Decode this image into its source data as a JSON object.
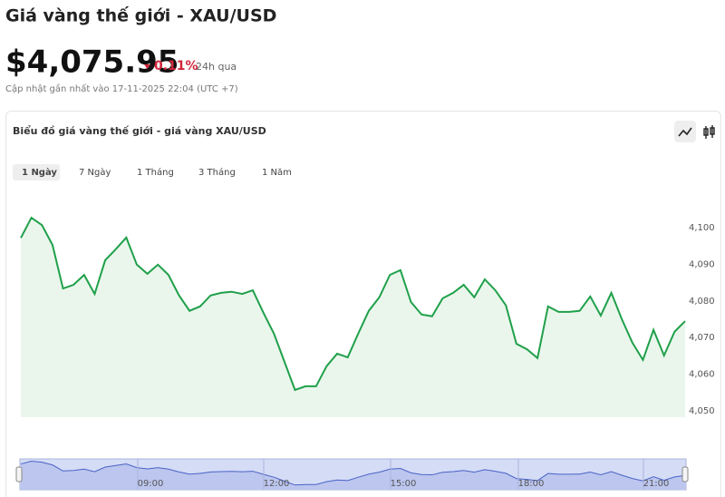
{
  "header": {
    "title": "Giá vàng thế giới - XAU/USD",
    "price": "$4,075.95",
    "change": "0.11%",
    "period": "24h qua",
    "updated": "Cập nhật gần nhất vào 17-11-2025 22:04 (UTC +7)"
  },
  "tabs": [
    "1 Ngày",
    "7 Ngày",
    "1 Tháng",
    "3 Tháng",
    "1 Năm"
  ],
  "navigator_labels": [
    "09:00",
    "12:00",
    "15:00",
    "18:00",
    "21:00"
  ],
  "chart_data": {
    "type": "area",
    "title": "Biểu đồ giá vàng thế giới - giá vàng XAU/USD",
    "color": "#1fa04a",
    "fill": "#eaf6ec",
    "values": [
      4097.2,
      4102.7,
      4100.7,
      4095.3,
      4083.4,
      4084.4,
      4087.1,
      4081.9,
      4091.1,
      4094.1,
      4097.3,
      4089.9,
      4087.4,
      4089.9,
      4087.1,
      4081.5,
      4077.3,
      4078.5,
      4081.5,
      4082.2,
      4082.5,
      4081.9,
      4082.9,
      4076.8,
      4071.1,
      4063.4,
      4055.7,
      4056.7,
      4056.7,
      4062.2,
      4065.6,
      4064.6,
      4071.1,
      4077.3,
      4081.0,
      4087.1,
      4088.4,
      4079.7,
      4076.3,
      4075.8,
      4080.7,
      4082.2,
      4084.4,
      4081.0,
      4085.9,
      4082.9,
      4078.8,
      4068.3,
      4066.8,
      4064.4,
      4078.5,
      4077.0,
      4077.0,
      4077.3,
      4081.2,
      4076.0,
      4082.2,
      4075.0,
      4068.6,
      4063.9,
      4072.1,
      4065.1,
      4071.6,
      4074.5
    ],
    "ylim": [
      4050,
      4100
    ],
    "yticks": [
      {
        "value": 4050,
        "label": "4,050"
      },
      {
        "value": 4060,
        "label": "4,060"
      },
      {
        "value": 4070,
        "label": "4,070"
      },
      {
        "value": 4080,
        "label": "4,080"
      },
      {
        "value": 4090,
        "label": "4,090"
      },
      {
        "value": 4100,
        "label": "4,100"
      }
    ]
  }
}
